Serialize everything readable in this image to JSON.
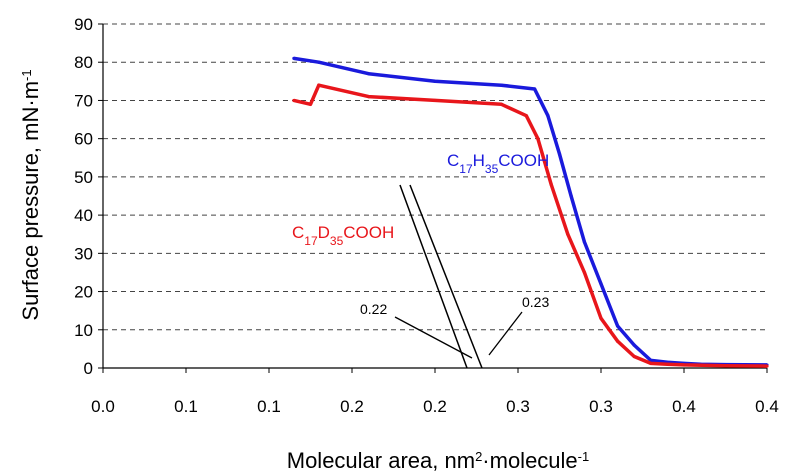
{
  "chart_data": {
    "type": "line",
    "xlabel": "Molecular area, nm²·molecule⁻¹",
    "ylabel": "Surface pressure, mN·m⁻¹",
    "xlim": [
      0.0,
      0.4
    ],
    "ylim": [
      0,
      90
    ],
    "x_ticks": [
      "0.0",
      "0.1",
      "0.2",
      "0.3",
      "0.4"
    ],
    "x_tick_values": [
      0.0,
      0.05,
      0.1,
      0.15,
      0.2,
      0.25,
      0.3,
      0.35,
      0.4
    ],
    "x_tick_labels": [
      "0.0",
      "0.1",
      "0.1",
      "0.2",
      "0.2",
      "0.3",
      "0.3",
      "0.4",
      "0.4"
    ],
    "y_ticks": [
      0,
      10,
      20,
      30,
      40,
      50,
      60,
      70,
      80,
      90
    ],
    "y_tick_labels": [
      "0",
      "10",
      "20",
      "30",
      "40",
      "50",
      "60",
      "70",
      "80",
      "90"
    ],
    "grid": "horizontal-dashed",
    "series": [
      {
        "name_main": "C",
        "name_sub1": "17",
        "name_mid": "H",
        "name_sub2": "35",
        "name_end": "COOH",
        "color": "#1a1adc",
        "x": [
          0.115,
          0.13,
          0.16,
          0.2,
          0.24,
          0.26,
          0.268,
          0.275,
          0.282,
          0.29,
          0.3,
          0.31,
          0.32,
          0.33,
          0.34,
          0.35,
          0.36,
          0.375,
          0.4
        ],
        "y": [
          81,
          80,
          77,
          75,
          74,
          73,
          66,
          56,
          45,
          33,
          22,
          11,
          6,
          2,
          1.5,
          1.2,
          1.0,
          0.9,
          0.8
        ]
      },
      {
        "name_main": "C",
        "name_sub1": "17",
        "name_mid": "D",
        "name_sub2": "35",
        "name_end": "COOH",
        "color": "#e8161b",
        "x": [
          0.115,
          0.125,
          0.13,
          0.16,
          0.2,
          0.24,
          0.255,
          0.262,
          0.27,
          0.28,
          0.29,
          0.3,
          0.31,
          0.32,
          0.33,
          0.34,
          0.35,
          0.375,
          0.4
        ],
        "y": [
          70,
          69,
          74,
          71,
          70,
          69,
          66,
          60,
          48,
          35,
          25,
          13,
          7,
          3,
          1.2,
          1.0,
          0.8,
          0.6,
          0.5
        ]
      }
    ],
    "annotations": [
      {
        "text": "0.22",
        "value": 0.22
      },
      {
        "text": "0.23",
        "value": 0.23
      }
    ]
  }
}
